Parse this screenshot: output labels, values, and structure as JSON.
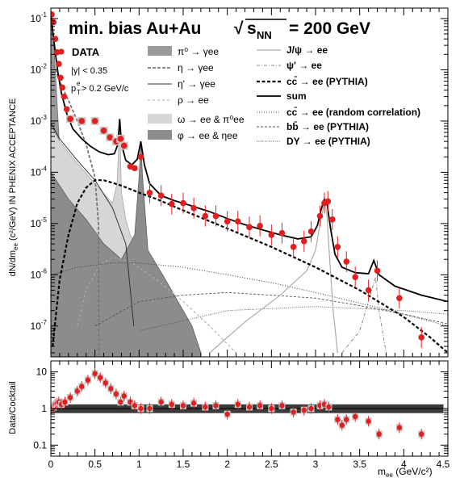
{
  "chart_data": [
    {
      "type": "line",
      "panel": "top",
      "title": "min. bias Au+Au",
      "title_energy": "= 200 GeV",
      "xlabel": "",
      "ylabel": "dN/dm",
      "ylabel_sub": "ee",
      "ylabel_tail": " (c²/GeV) IN PHENIX ACCEPTANCE",
      "log_y": true,
      "xlim": [
        0,
        4.5
      ],
      "ylim": [
        2.5e-08,
        0.16
      ],
      "cuts": [
        "|y| < 0.35",
        "p",
        "e",
        "T",
        " > 0.2 GeV/c"
      ],
      "legend_data_label": "DATA",
      "legend": [
        {
          "label": "π⁰ → γee",
          "style": "fill_dark"
        },
        {
          "label": "η → γee",
          "style": "dash_dark"
        },
        {
          "label": "η' → γee",
          "style": "solid_thin"
        },
        {
          "label": "ρ → ee",
          "style": "dash_light"
        },
        {
          "label": "ω → ee & π⁰ee",
          "style": "fill_light"
        },
        {
          "label": "φ → ee & ηee",
          "style": "fill_mid"
        },
        {
          "label": "J/ψ → ee",
          "style": "solid_light"
        },
        {
          "label": "ψ' → ee",
          "style": "dashdot"
        },
        {
          "label": "cc̄ → ee (PYTHIA)",
          "style": "bold_dash"
        },
        {
          "label": "sum",
          "style": "solid_bold"
        },
        {
          "label": "cc̄ → ee (random correlation)",
          "style": "dotted"
        },
        {
          "label": "bb̄ → ee (PYTHIA)",
          "style": "dashed_fine"
        },
        {
          "label": "DY → ee (PYTHIA)",
          "style": "dotted_fine"
        }
      ],
      "data_points": [
        {
          "x": 0.01,
          "y": 0.12
        },
        {
          "x": 0.03,
          "y": 0.085
        },
        {
          "x": 0.05,
          "y": 0.04
        },
        {
          "x": 0.07,
          "y": 0.022
        },
        {
          "x": 0.09,
          "y": 0.013
        },
        {
          "x": 0.11,
          "y": 0.007
        },
        {
          "x": 0.13,
          "y": 0.0045
        },
        {
          "x": 0.15,
          "y": 0.003
        },
        {
          "x": 0.18,
          "y": 0.0017
        },
        {
          "x": 0.22,
          "y": 0.0011
        },
        {
          "x": 0.35,
          "y": 0.001
        },
        {
          "x": 0.5,
          "y": 0.001
        },
        {
          "x": 0.6,
          "y": 0.00065
        },
        {
          "x": 0.67,
          "y": 0.00048
        },
        {
          "x": 0.74,
          "y": 0.0004
        },
        {
          "x": 0.79,
          "y": 0.00045
        },
        {
          "x": 0.83,
          "y": 0.00033
        },
        {
          "x": 0.9,
          "y": 0.00013
        },
        {
          "x": 0.95,
          "y": 0.00012
        },
        {
          "x": 1.02,
          "y": 0.0002
        },
        {
          "x": 1.12,
          "y": 4e-05
        },
        {
          "x": 1.25,
          "y": 3.5e-05
        },
        {
          "x": 1.37,
          "y": 2.4e-05
        },
        {
          "x": 1.5,
          "y": 2.5e-05
        },
        {
          "x": 1.62,
          "y": 2e-05
        },
        {
          "x": 1.75,
          "y": 1.4e-05
        },
        {
          "x": 1.87,
          "y": 1.4e-05
        },
        {
          "x": 2.0,
          "y": 1.1e-05
        },
        {
          "x": 2.12,
          "y": 1.1e-05
        },
        {
          "x": 2.25,
          "y": 8.5e-06
        },
        {
          "x": 2.37,
          "y": 9e-06
        },
        {
          "x": 2.5,
          "y": 6e-06
        },
        {
          "x": 2.62,
          "y": 6.5e-06
        },
        {
          "x": 2.75,
          "y": 3.5e-06
        },
        {
          "x": 2.87,
          "y": 4.5e-06
        },
        {
          "x": 2.95,
          "y": 7e-06
        },
        {
          "x": 3.05,
          "y": 1.4e-05
        },
        {
          "x": 3.1,
          "y": 2.5e-05
        },
        {
          "x": 3.14,
          "y": 2.7e-05
        },
        {
          "x": 3.19,
          "y": 1.2e-05
        },
        {
          "x": 3.25,
          "y": 3.5e-06
        },
        {
          "x": 3.35,
          "y": 1.8e-06
        },
        {
          "x": 3.45,
          "y": 9e-07
        },
        {
          "x": 3.6,
          "y": 5e-07
        },
        {
          "x": 3.7,
          "y": 1.2e-06
        },
        {
          "x": 3.95,
          "y": 3.5e-07
        },
        {
          "x": 4.2,
          "y": 6e-08
        }
      ],
      "cocktail": {
        "sum": [
          [
            0,
            0.14
          ],
          [
            0.02,
            0.06
          ],
          [
            0.05,
            0.022
          ],
          [
            0.08,
            0.009
          ],
          [
            0.12,
            0.0035
          ],
          [
            0.18,
            0.0014
          ],
          [
            0.25,
            0.0007
          ],
          [
            0.35,
            0.00045
          ],
          [
            0.45,
            0.00032
          ],
          [
            0.55,
            0.00025
          ],
          [
            0.65,
            0.00022
          ],
          [
            0.72,
            0.00023
          ],
          [
            0.76,
            0.00035
          ],
          [
            0.78,
            0.0011
          ],
          [
            0.8,
            0.00035
          ],
          [
            0.85,
            0.00017
          ],
          [
            0.92,
            0.00014
          ],
          [
            0.98,
            0.00018
          ],
          [
            1.02,
            0.0004
          ],
          [
            1.06,
            0.00014
          ],
          [
            1.12,
            6e-05
          ],
          [
            1.25,
            3.5e-05
          ],
          [
            1.4,
            2.8e-05
          ],
          [
            1.6,
            2.2e-05
          ],
          [
            1.8,
            1.7e-05
          ],
          [
            2.0,
            1.25e-05
          ],
          [
            2.2,
            9.5e-06
          ],
          [
            2.4,
            7.5e-06
          ],
          [
            2.6,
            6e-06
          ],
          [
            2.8,
            5e-06
          ],
          [
            2.95,
            5.5e-06
          ],
          [
            3.02,
            9e-06
          ],
          [
            3.06,
            1.8e-05
          ],
          [
            3.1,
            3e-05
          ],
          [
            3.13,
            2.5e-05
          ],
          [
            3.17,
            8e-06
          ],
          [
            3.22,
            2.5e-06
          ],
          [
            3.3,
            1.4e-06
          ],
          [
            3.45,
            1.1e-06
          ],
          [
            3.6,
            1.05e-06
          ],
          [
            3.66,
            1.9e-06
          ],
          [
            3.72,
            1e-06
          ],
          [
            3.9,
            6e-07
          ],
          [
            4.2,
            4e-07
          ],
          [
            4.5,
            3e-07
          ]
        ],
        "pi0": [
          [
            0,
            0.14
          ],
          [
            0.02,
            0.06
          ],
          [
            0.04,
            0.02
          ],
          [
            0.06,
            0.005
          ],
          [
            0.08,
            0.0012
          ],
          [
            0.1,
            0.0003
          ],
          [
            0.12,
            5e-05
          ],
          [
            0.134,
            1e-08
          ]
        ],
        "eta": [
          [
            0,
            0.015
          ],
          [
            0.05,
            0.01
          ],
          [
            0.1,
            0.006
          ],
          [
            0.2,
            0.0025
          ],
          [
            0.3,
            0.001
          ],
          [
            0.4,
            0.00035
          ],
          [
            0.5,
            8e-05
          ],
          [
            0.54,
            1e-05
          ],
          [
            0.546,
            1e-08
          ]
        ],
        "etaprime": [
          [
            0,
            0.0009
          ],
          [
            0.1,
            0.00045
          ],
          [
            0.3,
            0.00017
          ],
          [
            0.5,
            7e-05
          ],
          [
            0.7,
            2e-05
          ],
          [
            0.85,
            4e-06
          ],
          [
            0.94,
            1e-07
          ]
        ],
        "rho": [
          [
            0.3,
            1e-07
          ],
          [
            0.4,
            5e-07
          ],
          [
            0.55,
            1.5e-06
          ],
          [
            0.7,
            2.2e-06
          ],
          [
            0.9,
            1.8e-06
          ],
          [
            1.2,
            8e-07
          ],
          [
            1.5,
            3e-07
          ],
          [
            1.8,
            1e-07
          ],
          [
            2.1,
            3e-08
          ]
        ],
        "omega_fill": [
          [
            0,
            0.0008
          ],
          [
            0.1,
            0.0004
          ],
          [
            0.3,
            0.00015
          ],
          [
            0.5,
            6e-05
          ],
          [
            0.62,
            3.5e-05
          ],
          [
            0.7,
            2.5e-05
          ],
          [
            0.75,
            6e-05
          ],
          [
            0.78,
            0.0009
          ],
          [
            0.8,
            4e-05
          ],
          [
            0.85,
            1.2e-05
          ],
          [
            0.9,
            6e-06
          ],
          [
            1.0,
            3e-06
          ],
          [
            1.1,
            8e-07
          ],
          [
            1.3,
            1e-07
          ],
          [
            1.6,
            2e-08
          ]
        ],
        "phi_fill": [
          [
            0,
            0.0001
          ],
          [
            0.2,
            3e-05
          ],
          [
            0.4,
            1.2e-05
          ],
          [
            0.6,
            4e-06
          ],
          [
            0.8,
            2e-06
          ],
          [
            0.95,
            6e-06
          ],
          [
            1.0,
            8e-05
          ],
          [
            1.02,
            0.00035
          ],
          [
            1.04,
            8e-05
          ],
          [
            1.1,
            3e-06
          ],
          [
            1.3,
            8e-07
          ],
          [
            1.6,
            1e-07
          ],
          [
            1.7,
            3e-08
          ]
        ],
        "charm": [
          [
            0.02,
            4e-08
          ],
          [
            0.1,
            8e-07
          ],
          [
            0.2,
            6e-06
          ],
          [
            0.3,
            2.5e-05
          ],
          [
            0.4,
            5e-05
          ],
          [
            0.5,
            7e-05
          ],
          [
            0.6,
            7e-05
          ],
          [
            0.8,
            5.5e-05
          ],
          [
            1.0,
            4e-05
          ],
          [
            1.2,
            3e-05
          ],
          [
            1.5,
            1.8e-05
          ],
          [
            2.0,
            8e-06
          ],
          [
            2.5,
            3.5e-06
          ],
          [
            3.0,
            1.4e-06
          ],
          [
            3.5,
            5e-07
          ],
          [
            4.0,
            1.5e-07
          ],
          [
            4.3,
            6e-08
          ],
          [
            4.5,
            3e-08
          ]
        ],
        "random": [
          [
            0,
            1e-06
          ],
          [
            0.3,
            1.4e-06
          ],
          [
            0.7,
            1.7e-06
          ],
          [
            1.0,
            1.7e-06
          ],
          [
            1.5,
            1.4e-06
          ],
          [
            2.0,
            1e-06
          ],
          [
            2.5,
            7e-07
          ],
          [
            3.0,
            4.5e-07
          ],
          [
            3.5,
            2.8e-07
          ],
          [
            4.0,
            1.7e-07
          ],
          [
            4.5,
            1e-07
          ]
        ],
        "bottom": [
          [
            0.5,
            1e-07
          ],
          [
            1.0,
            3e-07
          ],
          [
            1.5,
            4e-07
          ],
          [
            2.0,
            4.5e-07
          ],
          [
            2.5,
            4e-07
          ],
          [
            3.0,
            3.5e-07
          ],
          [
            3.5,
            2.5e-07
          ],
          [
            4.0,
            1.7e-07
          ],
          [
            4.5,
            1.1e-07
          ]
        ],
        "dy": [
          [
            1.0,
            8e-08
          ],
          [
            2.0,
            2e-07
          ],
          [
            3.0,
            2.4e-07
          ],
          [
            4.0,
            2e-07
          ],
          [
            4.5,
            1.7e-07
          ]
        ],
        "jpsi": [
          [
            1.8,
            3e-08
          ],
          [
            2.2,
            1.2e-07
          ],
          [
            2.6,
            4e-07
          ],
          [
            2.9,
            1.2e-06
          ],
          [
            3.0,
            3e-06
          ],
          [
            3.06,
            1.2e-05
          ],
          [
            3.1,
            2.6e-05
          ],
          [
            3.13,
            1.5e-05
          ],
          [
            3.16,
            2e-06
          ],
          [
            3.2,
            2e-07
          ],
          [
            3.25,
            3e-08
          ]
        ],
        "psiprime": [
          [
            3.3,
            3e-08
          ],
          [
            3.5,
            8e-08
          ],
          [
            3.62,
            4e-07
          ],
          [
            3.68,
            9e-07
          ],
          [
            3.72,
            2e-07
          ],
          [
            3.8,
            3e-08
          ]
        ]
      }
    },
    {
      "type": "scatter",
      "panel": "bottom",
      "xlabel": "m",
      "xlabel_sub": "ee",
      "xlabel_tail": " (GeV/c²)",
      "ylabel": "Data/Cocktail",
      "log_y": true,
      "xlim": [
        0,
        4.5
      ],
      "ylim": [
        0.05,
        20
      ],
      "x_ticks": [
        "0",
        "0.5",
        "1",
        "1.5",
        "2",
        "2.5",
        "3",
        "3.5",
        "4",
        "4.5"
      ],
      "y_ticks": [
        "0.1",
        "1",
        "10"
      ],
      "systematic_band": [
        0.75,
        1.3
      ],
      "ratio_points": [
        {
          "x": 0.01,
          "y": 1.0
        },
        {
          "x": 0.03,
          "y": 1.1
        },
        {
          "x": 0.05,
          "y": 1.3
        },
        {
          "x": 0.07,
          "y": 1.4
        },
        {
          "x": 0.09,
          "y": 1.5
        },
        {
          "x": 0.12,
          "y": 1.3
        },
        {
          "x": 0.16,
          "y": 1.5
        },
        {
          "x": 0.22,
          "y": 2.0
        },
        {
          "x": 0.3,
          "y": 3.0
        },
        {
          "x": 0.35,
          "y": 4.0
        },
        {
          "x": 0.42,
          "y": 6.0
        },
        {
          "x": 0.5,
          "y": 9.0
        },
        {
          "x": 0.56,
          "y": 7.0
        },
        {
          "x": 0.62,
          "y": 5.0
        },
        {
          "x": 0.68,
          "y": 3.5
        },
        {
          "x": 0.74,
          "y": 2.5
        },
        {
          "x": 0.79,
          "y": 1.5
        },
        {
          "x": 0.83,
          "y": 2.2
        },
        {
          "x": 0.9,
          "y": 1.5
        },
        {
          "x": 0.95,
          "y": 1.2
        },
        {
          "x": 1.02,
          "y": 1.0
        },
        {
          "x": 1.12,
          "y": 1.0
        },
        {
          "x": 1.25,
          "y": 1.5
        },
        {
          "x": 1.37,
          "y": 1.3
        },
        {
          "x": 1.5,
          "y": 1.2
        },
        {
          "x": 1.62,
          "y": 1.4
        },
        {
          "x": 1.75,
          "y": 1.1
        },
        {
          "x": 1.87,
          "y": 1.2
        },
        {
          "x": 2.0,
          "y": 0.7
        },
        {
          "x": 2.12,
          "y": 1.3
        },
        {
          "x": 2.25,
          "y": 1.1
        },
        {
          "x": 2.37,
          "y": 1.2
        },
        {
          "x": 2.5,
          "y": 1.0
        },
        {
          "x": 2.62,
          "y": 1.2
        },
        {
          "x": 2.75,
          "y": 0.8
        },
        {
          "x": 2.87,
          "y": 0.9
        },
        {
          "x": 2.95,
          "y": 1.0
        },
        {
          "x": 3.05,
          "y": 1.2
        },
        {
          "x": 3.1,
          "y": 1.3
        },
        {
          "x": 3.15,
          "y": 1.1
        },
        {
          "x": 3.25,
          "y": 0.5
        },
        {
          "x": 3.3,
          "y": 0.35
        },
        {
          "x": 3.35,
          "y": 0.5
        },
        {
          "x": 3.45,
          "y": 0.6
        },
        {
          "x": 3.6,
          "y": 0.45
        },
        {
          "x": 3.72,
          "y": 0.2
        },
        {
          "x": 3.95,
          "y": 0.3
        },
        {
          "x": 4.2,
          "y": 0.2
        }
      ]
    }
  ]
}
